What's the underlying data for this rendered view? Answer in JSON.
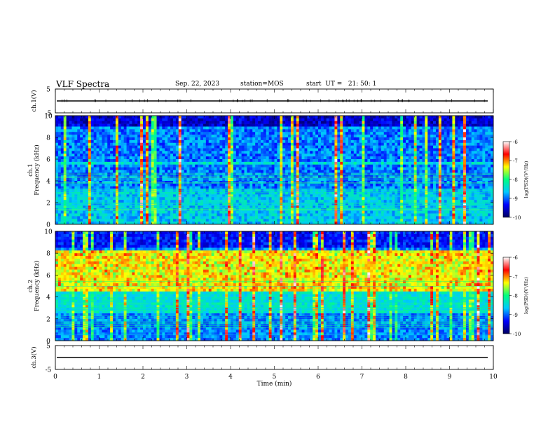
{
  "header": {
    "title": "VLF Spectra",
    "date": "Sep. 22, 2023",
    "station": "station=MOS",
    "start": "start  UT =   21: 50: 1"
  },
  "chart_data": [
    {
      "type": "line",
      "name": "channel-1-waveform",
      "ylabel": "ch.1(V)",
      "ylim": [
        -5,
        5
      ],
      "yticks": [
        "5",
        "-5"
      ],
      "baseline_value": 0
    },
    {
      "type": "heatmap",
      "name": "channel-1-spectrogram",
      "ylabel_top": "ch.1",
      "ylabel": "Frequency (kHz)",
      "ylim": [
        0,
        10
      ],
      "yticks": [
        "0",
        "2",
        "4",
        "6",
        "8",
        "10"
      ],
      "colorbar": {
        "label": "log(PSD)(V²/Hz)",
        "range": [
          -10,
          -6
        ],
        "ticks": [
          "-6",
          "-7",
          "-8",
          "-9",
          "-10"
        ],
        "colors": [
          "#000060",
          "#0000ff",
          "#00c8ff",
          "#00ff80",
          "#ffff00",
          "#ff0000",
          "#ffffff"
        ]
      }
    },
    {
      "type": "heatmap",
      "name": "channel-2-spectrogram",
      "ylabel_top": "ch.2",
      "ylabel": "Frequency (kHz)",
      "ylim": [
        0,
        10
      ],
      "yticks": [
        "0",
        "2",
        "4",
        "6",
        "8",
        "10"
      ],
      "colorbar": {
        "label": "log(PSD)(V²/Hz)",
        "range": [
          -10,
          -6
        ],
        "ticks": [
          "-6",
          "-7",
          "-8",
          "-9",
          "-10"
        ],
        "colors": [
          "#000060",
          "#0000ff",
          "#00c8ff",
          "#00ff80",
          "#ffff00",
          "#ff0000",
          "#ffffff"
        ]
      }
    },
    {
      "type": "line",
      "name": "channel-3-waveform",
      "ylabel": "ch.3(V)",
      "ylim": [
        -5,
        5
      ],
      "yticks": [
        "5",
        "-5"
      ],
      "baseline_value": 0
    }
  ],
  "xaxis": {
    "label": "Time  (min)",
    "xlim": [
      0,
      10
    ],
    "ticks": [
      "0",
      "1",
      "2",
      "3",
      "4",
      "5",
      "6",
      "7",
      "8",
      "9",
      "10"
    ]
  }
}
